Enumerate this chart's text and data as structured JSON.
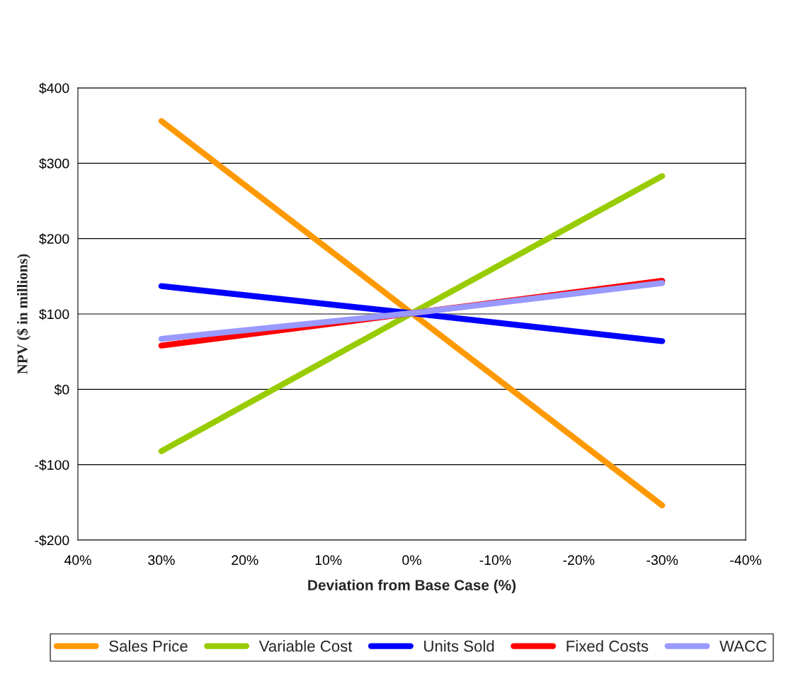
{
  "chart_data": {
    "type": "line",
    "xlabel": "Deviation from Base Case (%)",
    "ylabel": "NPV ($ in millions)",
    "x": [
      30,
      0,
      -30
    ],
    "series": [
      {
        "name": "Sales Price",
        "color": "#ff9900",
        "values": [
          356,
          101,
          -154
        ]
      },
      {
        "name": "Variable Cost",
        "color": "#99cc00",
        "values": [
          -82,
          101,
          283
        ]
      },
      {
        "name": "Units Sold",
        "color": "#0000ff",
        "values": [
          137,
          101,
          64
        ]
      },
      {
        "name": "Fixed Costs",
        "color": "#ff0000",
        "values": [
          58,
          101,
          144
        ]
      },
      {
        "name": "WACC",
        "color": "#9999ff",
        "values": [
          67,
          101,
          141
        ]
      }
    ],
    "xlim": [
      40,
      -40
    ],
    "xticks": [
      {
        "value": 40,
        "label": "40%"
      },
      {
        "value": 30,
        "label": "30%"
      },
      {
        "value": 20,
        "label": "20%"
      },
      {
        "value": 10,
        "label": "10%"
      },
      {
        "value": 0,
        "label": "0%"
      },
      {
        "value": -10,
        "label": "-10%"
      },
      {
        "value": -20,
        "label": "-20%"
      },
      {
        "value": -30,
        "label": "-30%"
      },
      {
        "value": -40,
        "label": "-40%"
      }
    ],
    "ylim": [
      -200,
      400
    ],
    "yticks": [
      {
        "value": -200,
        "label": "-$200"
      },
      {
        "value": -100,
        "label": "-$100"
      },
      {
        "value": 0,
        "label": "$0"
      },
      {
        "value": 100,
        "label": "$100"
      },
      {
        "value": 200,
        "label": "$200"
      },
      {
        "value": 300,
        "label": "$300"
      },
      {
        "value": 400,
        "label": "$400"
      }
    ],
    "grid": "y",
    "legend": "bottom",
    "marker": "none",
    "line_style": "solid"
  }
}
